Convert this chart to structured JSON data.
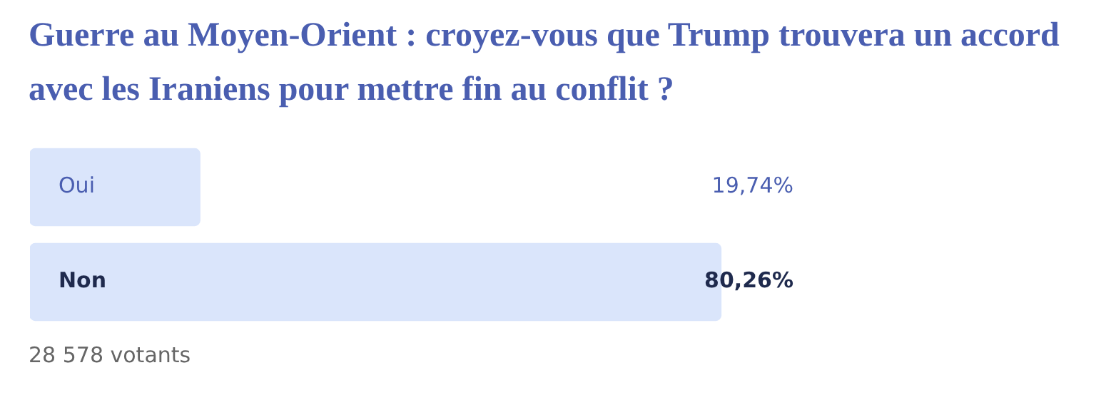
{
  "chart_data": {
    "type": "bar",
    "orientation": "horizontal",
    "title": "Guerre au Moyen-Orient : croyez-vous que Trump trouvera un accord avec les Iraniens pour mettre fin au conflit ?",
    "categories": [
      "Oui",
      "Non"
    ],
    "values": [
      19.74,
      80.26
    ],
    "value_labels": [
      "19,74%",
      "80,26%"
    ],
    "color": "#dae5fb",
    "legend": false,
    "annotations": [
      "28 578 votants"
    ]
  }
}
